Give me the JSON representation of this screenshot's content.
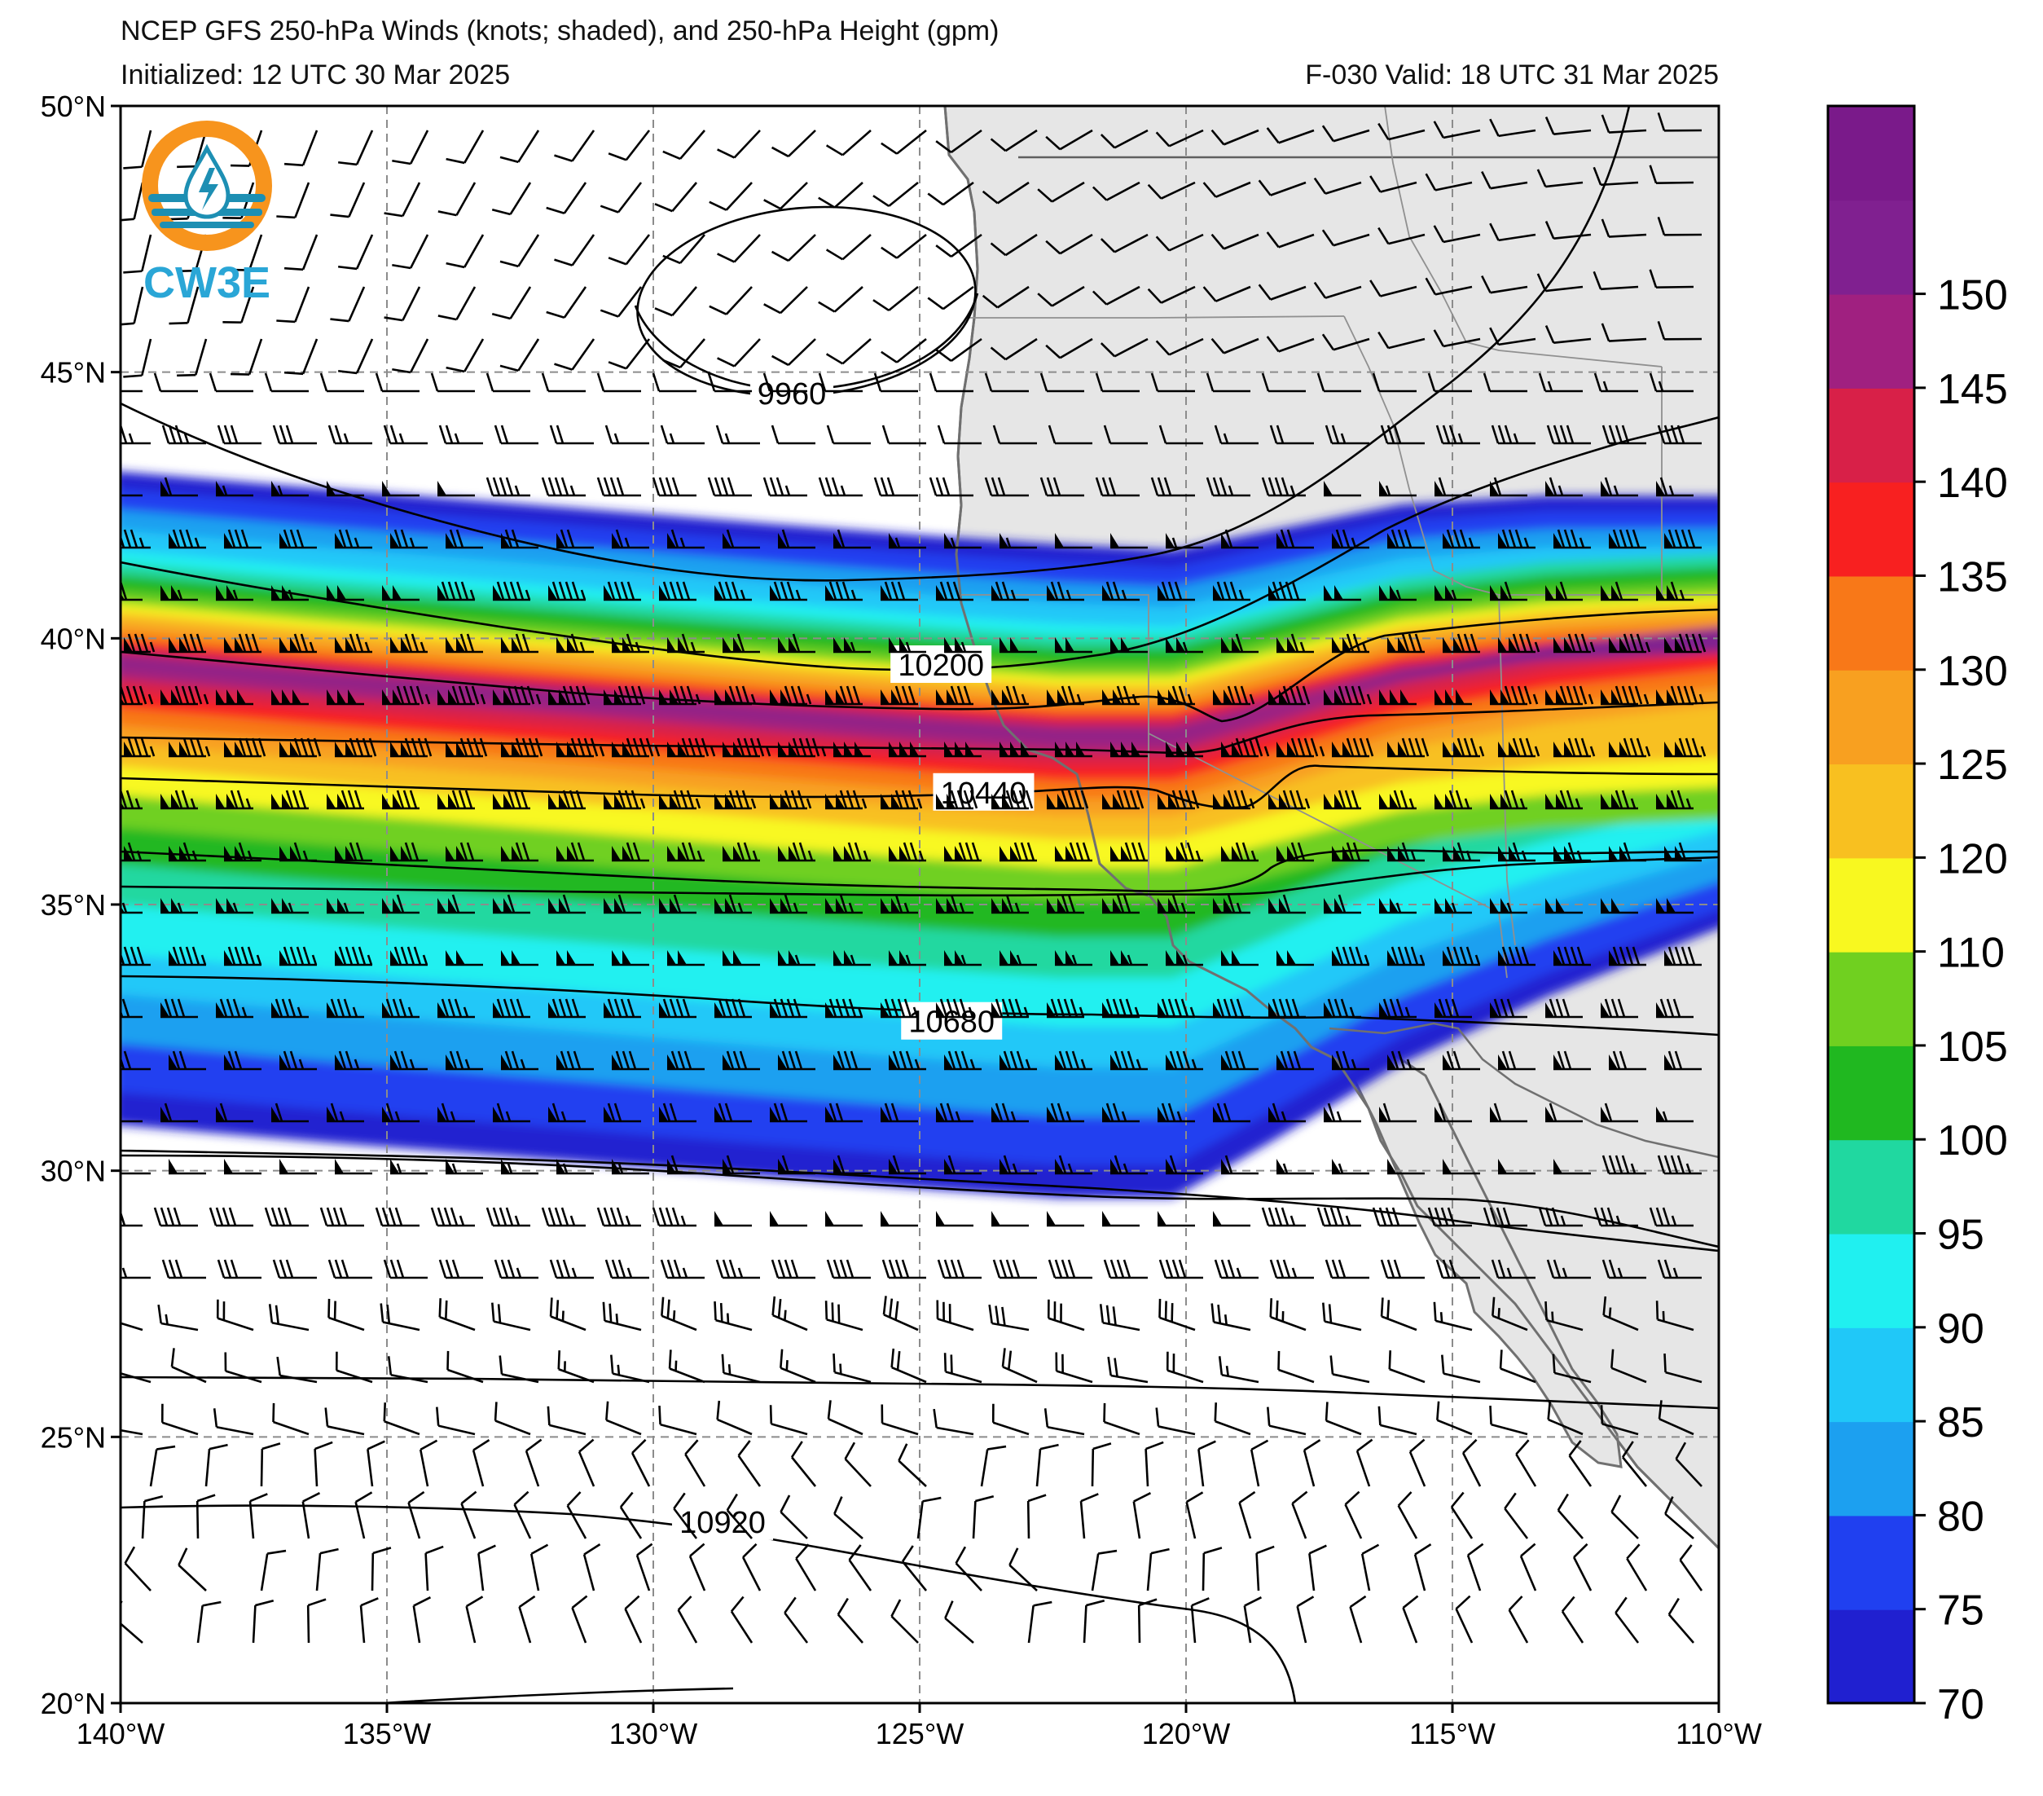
{
  "header": {
    "title_line1": "NCEP GFS 250-hPa Winds (knots; shaded), and 250-hPa Height (gpm)",
    "initialized": "Initialized: 12 UTC 30 Mar 2025",
    "valid": "F-030  Valid: 18 UTC 31 Mar 2025"
  },
  "logo": {
    "text": "CW3E",
    "ring_color": "#f7941d",
    "wave_color": "#1d8fb3",
    "text_color": "#2aa6d6"
  },
  "map": {
    "lon_range": [
      -140,
      -110
    ],
    "lat_range": [
      20,
      50
    ],
    "lon_ticks": [
      "140°W",
      "135°W",
      "130°W",
      "125°W",
      "120°W",
      "115°W",
      "110°W"
    ],
    "lat_ticks": [
      "20°N",
      "25°N",
      "30°N",
      "35°N",
      "40°N",
      "45°N",
      "50°N"
    ],
    "land_color": "#e6e6e6",
    "contour_labels": [
      {
        "text": "9960",
        "lon": -127.4,
        "lat": 44.6
      },
      {
        "text": "10200",
        "lon": -124.6,
        "lat": 39.5
      },
      {
        "text": "10440",
        "lon": -123.8,
        "lat": 37.1
      },
      {
        "text": "10680",
        "lon": -124.4,
        "lat": 32.8
      },
      {
        "text": "10920",
        "lon": -128.7,
        "lat": 23.4
      }
    ]
  },
  "colorbar": {
    "levels": [
      "70",
      "75",
      "80",
      "85",
      "90",
      "95",
      "100",
      "105",
      "110",
      "120",
      "125",
      "130",
      "135",
      "140",
      "145",
      "150"
    ],
    "colors": [
      "#2020d0",
      "#2040f0",
      "#1ca0f0",
      "#20c8f8",
      "#20f0f0",
      "#20d8a0",
      "#20b820",
      "#70d020",
      "#f8f820",
      "#f8c020",
      "#f8a020",
      "#f87818",
      "#f82020",
      "#d82048",
      "#a02080",
      "#802090",
      "#7a1a8a"
    ]
  }
}
